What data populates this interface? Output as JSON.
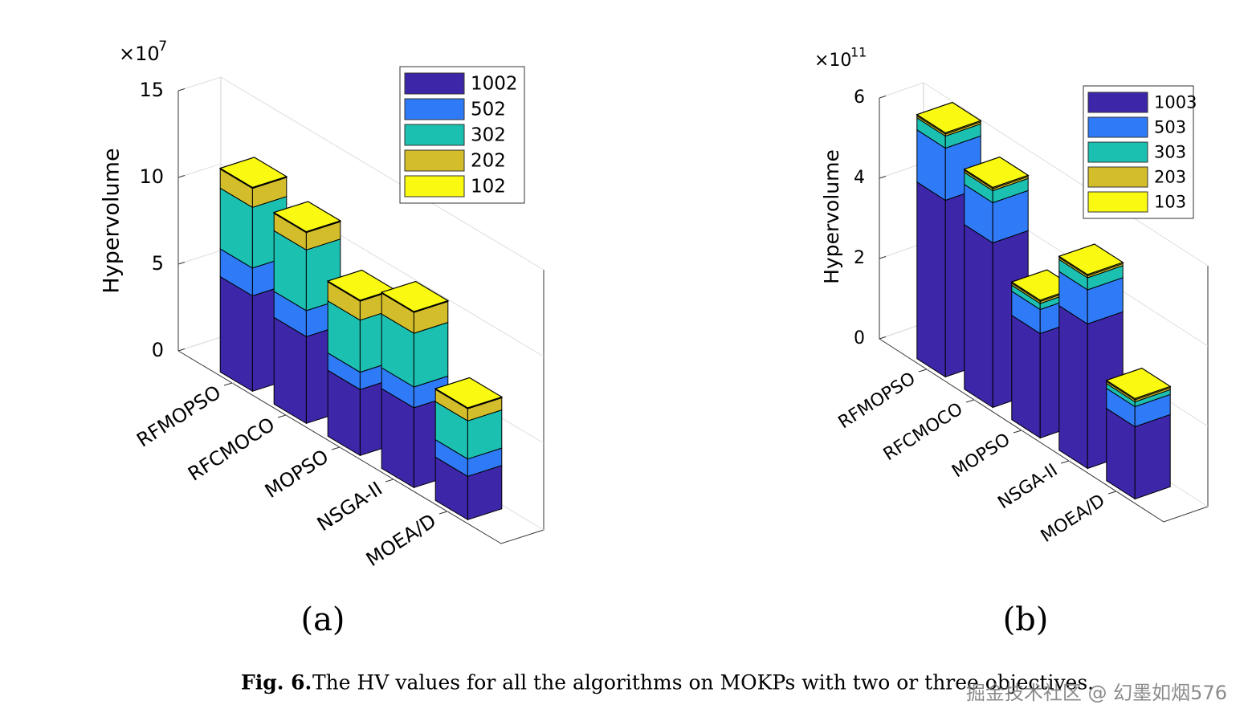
{
  "chart_data": [
    {
      "type": "bar3d_stacked",
      "panel_label": "(a)",
      "y_label": "Hypervolume",
      "multiplier": "×10",
      "multiplier_exponent": "7",
      "categories": [
        "RFMOPSO",
        "RFCMOCO",
        "MOPSO",
        "NSGA-II",
        "MOEA/D"
      ],
      "series": [
        {
          "name": "1002",
          "color": "#3e26a8",
          "values": [
            5.5,
            5.0,
            3.8,
            4.6,
            2.5
          ]
        },
        {
          "name": "502",
          "color": "#2f7bf7",
          "values": [
            1.6,
            1.5,
            1.0,
            1.2,
            1.0
          ]
        },
        {
          "name": "302",
          "color": "#1bc0b0",
          "values": [
            3.5,
            3.5,
            3.0,
            3.1,
            2.2
          ]
        },
        {
          "name": "202",
          "color": "#d4bd2a",
          "values": [
            1.1,
            1.0,
            1.1,
            1.2,
            0.7
          ]
        },
        {
          "name": "102",
          "color": "#f9f912",
          "values": [
            0.05,
            0.05,
            0.05,
            0.05,
            0.05
          ]
        }
      ],
      "ylim": [
        0,
        15
      ],
      "yticks": [
        0,
        5,
        10,
        15
      ],
      "grid": true
    },
    {
      "type": "bar3d_stacked",
      "panel_label": "(b)",
      "y_label": "Hypervolume",
      "multiplier": "×10",
      "multiplier_exponent": "11",
      "categories": [
        "RFMOPSO",
        "RFCMOCO",
        "MOPSO",
        "NSGA-II",
        "MOEA/D"
      ],
      "series": [
        {
          "name": "1003",
          "color": "#3e26a8",
          "values": [
            4.4,
            4.1,
            2.6,
            3.6,
            1.8
          ]
        },
        {
          "name": "503",
          "color": "#2f7bf7",
          "values": [
            1.3,
            1.0,
            0.6,
            0.85,
            0.5
          ]
        },
        {
          "name": "303",
          "color": "#1bc0b0",
          "values": [
            0.3,
            0.3,
            0.15,
            0.3,
            0.12
          ]
        },
        {
          "name": "203",
          "color": "#d4bd2a",
          "values": [
            0.05,
            0.05,
            0.05,
            0.05,
            0.05
          ]
        },
        {
          "name": "103",
          "color": "#f9f912",
          "values": [
            0.03,
            0.03,
            0.03,
            0.03,
            0.03
          ]
        }
      ],
      "ylim": [
        0,
        6
      ],
      "yticks": [
        0,
        2,
        4,
        6
      ],
      "grid": true
    }
  ],
  "caption": {
    "label": "Fig. 6.",
    "text": "The HV values for all the algorithms on MOKPs with two or three objectives."
  },
  "watermark": "掘金技术社区 @ 幻墨如烟576"
}
